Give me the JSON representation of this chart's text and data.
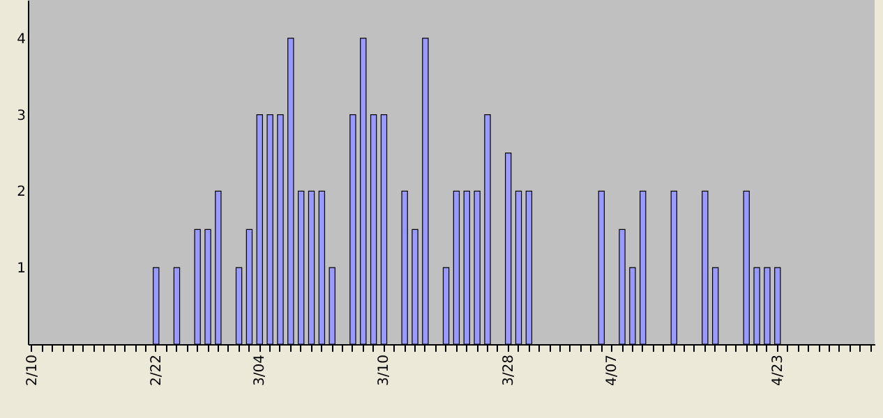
{
  "chart_data": {
    "type": "bar",
    "categories": [
      "2/10",
      null,
      null,
      null,
      null,
      null,
      null,
      null,
      null,
      null,
      null,
      null,
      "2/22",
      null,
      null,
      null,
      null,
      null,
      null,
      null,
      null,
      null,
      "3/04",
      null,
      null,
      null,
      null,
      null,
      null,
      null,
      null,
      null,
      null,
      null,
      "3/10",
      null,
      null,
      null,
      null,
      null,
      null,
      null,
      null,
      null,
      null,
      null,
      "3/28",
      null,
      null,
      null,
      null,
      null,
      null,
      null,
      null,
      null,
      "4/07",
      null,
      null,
      null,
      null,
      null,
      null,
      null,
      null,
      null,
      null,
      null,
      null,
      null,
      null,
      null,
      "4/23",
      null,
      null,
      null,
      null,
      null,
      null,
      null,
      null,
      null
    ],
    "values": [
      null,
      null,
      null,
      null,
      null,
      null,
      null,
      null,
      null,
      null,
      null,
      null,
      1,
      null,
      1,
      null,
      1.5,
      1.5,
      2,
      null,
      1,
      1.5,
      3,
      3,
      3,
      4,
      2,
      2,
      2,
      1,
      null,
      3,
      4,
      3,
      3,
      null,
      2,
      1.5,
      4,
      null,
      1,
      2,
      2,
      2,
      3,
      null,
      2.5,
      2,
      2,
      null,
      null,
      null,
      null,
      null,
      null,
      2,
      null,
      1.5,
      1,
      2,
      null,
      null,
      2,
      null,
      null,
      2,
      1,
      null,
      null,
      2,
      1,
      1,
      1,
      null,
      null,
      null,
      null,
      null,
      null,
      null,
      null,
      null
    ],
    "color": "#9999ff",
    "ylim": [
      0,
      4.5
    ],
    "yticks": [
      1,
      2,
      3,
      4
    ],
    "grid": false
  }
}
